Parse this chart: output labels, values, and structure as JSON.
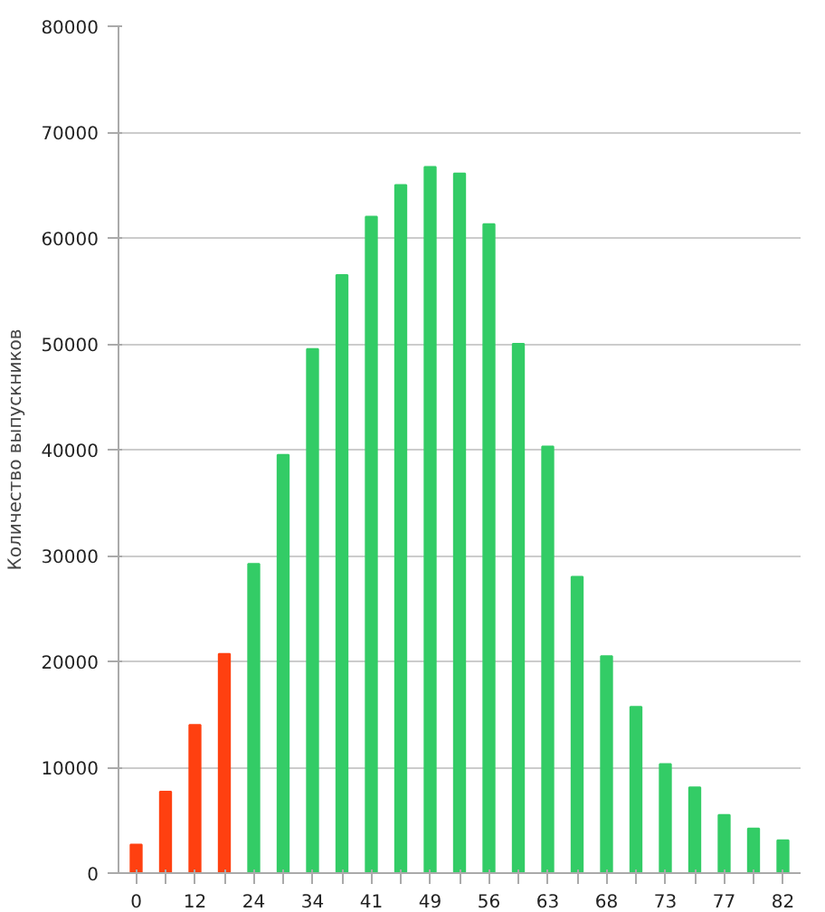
{
  "chart_data": {
    "type": "bar",
    "ylabel": "Количество выпускников",
    "categories": [
      "0",
      null,
      "12",
      null,
      "24",
      null,
      "34",
      null,
      "41",
      null,
      "49",
      null,
      "56",
      null,
      "63",
      null,
      "68",
      null,
      "73",
      null,
      "77",
      null,
      "82"
    ],
    "values": [
      2700,
      7700,
      14000,
      20700,
      29200,
      39500,
      49500,
      56500,
      62000,
      65000,
      66700,
      66100,
      61300,
      50000,
      40300,
      28000,
      20500,
      15700,
      10300,
      8100,
      5500,
      4200,
      3100
    ],
    "colors": [
      "#ff4010",
      "#ff4010",
      "#ff4010",
      "#ff4010",
      "#33cc66",
      "#33cc66",
      "#33cc66",
      "#33cc66",
      "#33cc66",
      "#33cc66",
      "#33cc66",
      "#33cc66",
      "#33cc66",
      "#33cc66",
      "#33cc66",
      "#33cc66",
      "#33cc66",
      "#33cc66",
      "#33cc66",
      "#33cc66",
      "#33cc66",
      "#33cc66",
      "#33cc66"
    ],
    "ylim": [
      0,
      80000
    ],
    "yticks": [
      0,
      10000,
      20000,
      30000,
      40000,
      50000,
      60000,
      70000,
      80000
    ],
    "grid": "y"
  }
}
